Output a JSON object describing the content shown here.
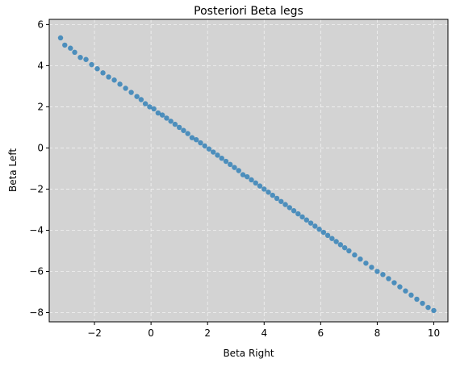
{
  "chart_data": {
    "type": "scatter",
    "title": "Posteriori Beta legs",
    "xlabel": "Beta Right",
    "ylabel": "Beta Left",
    "xlim": [
      -3.6,
      10.5
    ],
    "ylim": [
      -8.45,
      6.25
    ],
    "xticks": [
      -2,
      0,
      2,
      4,
      6,
      8,
      10
    ],
    "yticks": [
      -8,
      -6,
      -4,
      -2,
      0,
      2,
      4,
      6
    ],
    "xtick_labels": [
      "−2",
      "0",
      "2",
      "4",
      "6",
      "8",
      "10"
    ],
    "ytick_labels": [
      "−8",
      "−6",
      "−4",
      "−2",
      "0",
      "2",
      "4",
      "6"
    ],
    "grid": true,
    "colors": {
      "plot_background": "#d3d3d3",
      "points": "#1f77b4",
      "grid": "#ffffff"
    },
    "series": [
      {
        "relationship": "y ≈ 1.99 − 0.99·x",
        "x_range": [
          -3.2,
          10.0
        ],
        "x": [
          -3.2,
          -3.05,
          -2.85,
          -2.7,
          -2.5,
          -2.3,
          -2.1,
          -1.9,
          -1.7,
          -1.5,
          -1.3,
          -1.1,
          -0.9,
          -0.7,
          -0.5,
          -0.35,
          -0.2,
          -0.05,
          0.1,
          0.25,
          0.4,
          0.55,
          0.7,
          0.85,
          1.0,
          1.15,
          1.3,
          1.45,
          1.6,
          1.75,
          1.9,
          2.05,
          2.2,
          2.35,
          2.5,
          2.65,
          2.8,
          2.95,
          3.1,
          3.25,
          3.4,
          3.55,
          3.7,
          3.85,
          4.0,
          4.15,
          4.3,
          4.45,
          4.6,
          4.75,
          4.9,
          5.05,
          5.2,
          5.35,
          5.5,
          5.65,
          5.8,
          5.95,
          6.1,
          6.25,
          6.4,
          6.55,
          6.7,
          6.85,
          7.0,
          7.2,
          7.4,
          7.6,
          7.8,
          8.0,
          8.2,
          8.4,
          8.6,
          8.8,
          9.0,
          9.2,
          9.4,
          9.6,
          9.8,
          10.0
        ],
        "y": [
          5.35,
          5.0,
          4.85,
          4.65,
          4.4,
          4.3,
          4.05,
          3.85,
          3.65,
          3.45,
          3.3,
          3.1,
          2.9,
          2.7,
          2.5,
          2.35,
          2.15,
          2.0,
          1.9,
          1.7,
          1.6,
          1.45,
          1.3,
          1.15,
          1.0,
          0.85,
          0.7,
          0.5,
          0.4,
          0.25,
          0.1,
          -0.05,
          -0.2,
          -0.35,
          -0.5,
          -0.65,
          -0.8,
          -0.95,
          -1.1,
          -1.3,
          -1.4,
          -1.55,
          -1.7,
          -1.85,
          -2.0,
          -2.15,
          -2.3,
          -2.45,
          -2.6,
          -2.75,
          -2.9,
          -3.05,
          -3.2,
          -3.35,
          -3.5,
          -3.65,
          -3.8,
          -3.95,
          -4.1,
          -4.25,
          -4.4,
          -4.55,
          -4.7,
          -4.85,
          -5.0,
          -5.2,
          -5.4,
          -5.6,
          -5.8,
          -6.0,
          -6.15,
          -6.35,
          -6.55,
          -6.75,
          -6.95,
          -7.15,
          -7.35,
          -7.55,
          -7.75,
          -7.9
        ]
      }
    ]
  }
}
